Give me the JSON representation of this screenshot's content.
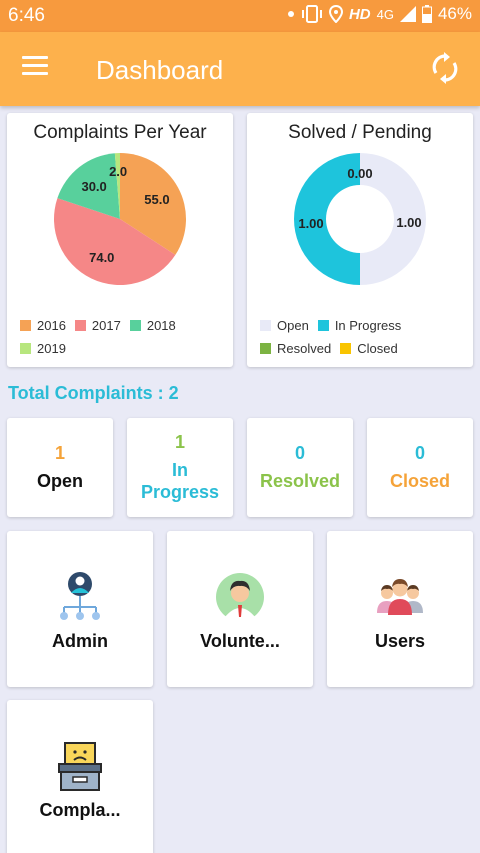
{
  "status_bar": {
    "time": "6:46",
    "network_hd": "HD",
    "network_type": "4G",
    "battery": "46%"
  },
  "app_bar": {
    "title": "Dashboard",
    "menu_icon": "hamburger-menu-icon",
    "refresh_icon": "refresh-icon"
  },
  "colors": {
    "status_bar": "#f79a3e",
    "app_bar": "#fdb14c",
    "background": "#e9eaf6",
    "accent_cyan": "#2bbcd6",
    "orange": "#f5a255",
    "salmon": "#f58787",
    "green": "#58d09c",
    "light_green": "#b7e67e",
    "resolved_green": "#8bc34a",
    "closed_orange": "#f5a339"
  },
  "charts": {
    "complaints_per_year": {
      "title": "Complaints Per Year",
      "labels": [
        "55.0",
        "74.0",
        "30.0",
        "2.0"
      ],
      "legend": [
        "2016",
        "2017",
        "2018",
        "2019"
      ]
    },
    "solved_pending": {
      "title": "Solved / Pending",
      "labels": [
        "0.00",
        "1.00",
        "1.00"
      ],
      "legend": [
        "Open",
        "In Progress",
        "Resolved",
        "Closed"
      ]
    }
  },
  "chart_data": [
    {
      "type": "pie",
      "title": "Complaints Per Year",
      "categories": [
        "2016",
        "2017",
        "2018",
        "2019"
      ],
      "values": [
        55.0,
        74.0,
        30.0,
        2.0
      ],
      "colors": [
        "#f5a255",
        "#f58787",
        "#58d09c",
        "#b7e67e"
      ],
      "legend": "bottom-left"
    },
    {
      "type": "pie",
      "title": "Solved / Pending",
      "categories": [
        "Open",
        "In Progress",
        "Resolved",
        "Closed"
      ],
      "values": [
        1.0,
        1.0,
        0.0,
        0.0
      ],
      "colors": [
        "#e8eaf7",
        "#1ec4dc",
        "#7cb342",
        "#f9c400"
      ],
      "legend": "bottom-left"
    }
  ],
  "summary": {
    "total_label": "Total Complaints : 2"
  },
  "stats": [
    {
      "count": "1",
      "label": "Open",
      "count_color": "#f5a339",
      "label_color": "#111111"
    },
    {
      "count": "1",
      "label_line1": "In",
      "label_line2": "Progress",
      "count_color": "#8bc34a",
      "label_color": "#2bbcd6"
    },
    {
      "count": "0",
      "label": "Resolved",
      "count_color": "#2bbcd6",
      "label_color": "#8bc34a"
    },
    {
      "count": "0",
      "label": "Closed",
      "count_color": "#2bbcd6",
      "label_color": "#f5a339"
    }
  ],
  "menu": [
    {
      "label": "Admin",
      "icon": "admin-network-icon"
    },
    {
      "label": "Volunte...",
      "icon": "volunteer-avatar-icon"
    },
    {
      "label": "Users",
      "icon": "users-group-icon"
    },
    {
      "label": "Compla...",
      "icon": "complaint-box-icon"
    }
  ]
}
